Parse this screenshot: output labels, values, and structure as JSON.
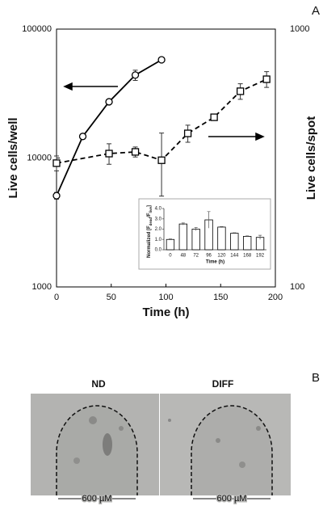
{
  "chart_data": [
    {
      "type": "line",
      "xlabel": "Time (h)",
      "ylabel": "Live cells/well",
      "y2label": "Live cells/spot",
      "xlim": [
        0,
        200
      ],
      "xticks": [
        0,
        50,
        100,
        150,
        200
      ],
      "ylim": [
        1000,
        100000
      ],
      "yticks": [
        1000,
        10000,
        100000
      ],
      "ylog": true,
      "y2lim": [
        100,
        1000
      ],
      "y2ticks": [
        100,
        1000
      ],
      "y2log": true,
      "series": [
        {
          "axis": "y",
          "marker": "circle",
          "dash": false,
          "color": "#000000",
          "x": [
            0,
            24,
            48,
            72,
            96
          ],
          "values": [
            5100,
            14700,
            27300,
            44000,
            57800
          ],
          "errors": [
            300,
            600,
            1000,
            4000,
            2500
          ]
        },
        {
          "axis": "y2",
          "marker": "square",
          "dash": true,
          "color": "#000000",
          "x": [
            0,
            48,
            72,
            96,
            120,
            144,
            168,
            192
          ],
          "values": [
            302,
            329,
            334,
            310,
            394,
            455,
            574,
            639
          ],
          "errors": [
            20,
            30,
            15,
            85,
            30,
            12,
            40,
            45
          ]
        }
      ]
    },
    {
      "type": "bar",
      "xlabel": "Time (h)",
      "ylabel_parts": [
        "Normalized [F",
        "dead",
        "/F",
        "live",
        "]"
      ],
      "categories": [
        "0",
        "48",
        "72",
        "96",
        "120",
        "144",
        "168",
        "192"
      ],
      "values": [
        1.0,
        2.5,
        2.0,
        2.9,
        2.2,
        1.6,
        1.3,
        1.2
      ],
      "errors": [
        0.05,
        0.1,
        0.15,
        0.8,
        0.05,
        0.05,
        0.05,
        0.2
      ],
      "color": "#ffffff",
      "ylim": [
        0,
        4
      ],
      "yticks": [
        {
          "value": 0,
          "label": "0.0"
        },
        {
          "value": 1,
          "label": "1.0"
        },
        {
          "value": 2,
          "label": "2.0"
        },
        {
          "value": 3,
          "label": "3.0"
        },
        {
          "value": 4,
          "label": "4.0"
        }
      ]
    }
  ],
  "panel_labels": [
    "A",
    "B"
  ],
  "panel_b": {
    "images": [
      {
        "title": "ND",
        "scale": "600 µM"
      },
      {
        "title": "DIFF",
        "scale": "600 µM"
      }
    ]
  }
}
